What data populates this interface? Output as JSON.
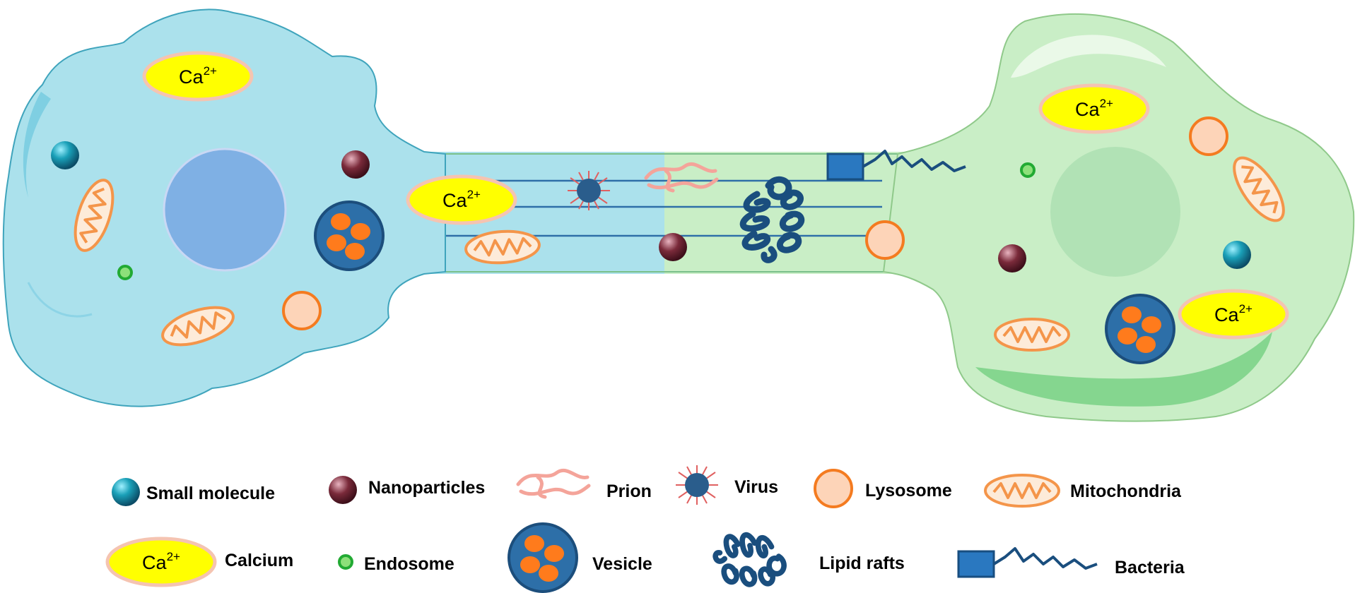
{
  "calcium_symbol": {
    "base": "Ca",
    "charge": "2+"
  },
  "colors": {
    "left_cell": "#abe1ec",
    "right_cell": "#c9eec6",
    "nucleus_left": "#7fb0e4",
    "nucleus_right": "#b1e2b5",
    "vesicle": "#2d6fa8",
    "vesicle_core": "#ff7b1c",
    "lysosome_fill": "#fdd4b8",
    "lysosome_stroke": "#f47b20",
    "mito_stroke": "#f4954a",
    "calcium_fill": "#ffff00",
    "calcium_stroke": "#f5c4b1",
    "prion": "#f4a49a",
    "virus": "#2a5d8c",
    "virus_spike": "#e06060",
    "nanoparticle": "#7a2a3a",
    "small_molecule": "#1aa0b8",
    "endosome": "#22aa33",
    "bacteria": "#2a78c0",
    "lipid_raft": "#1a4e7e"
  },
  "legend": {
    "small_molecule": "Small molecule",
    "nanoparticles": "Nanoparticles",
    "prion": "Prion",
    "virus": "Virus",
    "lysosome": "Lysosome",
    "mitochondria": "Mitochondria",
    "calcium": "Calcium",
    "endosome": "Endosome",
    "vesicle": "Vesicle",
    "lipid_rafts": "Lipid rafts",
    "bacteria": "Bacteria"
  }
}
